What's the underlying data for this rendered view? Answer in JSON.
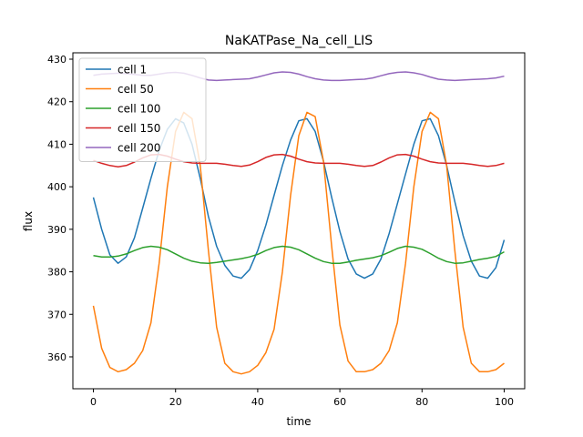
{
  "chart_data": {
    "type": "line",
    "title": "NaKATPase_Na_cell_LIS",
    "xlabel": "time",
    "ylabel": "flux",
    "xlim": [
      -5,
      105
    ],
    "ylim": [
      352.5,
      431.5
    ],
    "xticks": [
      0,
      20,
      40,
      60,
      80,
      100
    ],
    "yticks": [
      360,
      370,
      380,
      390,
      400,
      410,
      420,
      430
    ],
    "grid": false,
    "legend": "top-left",
    "series": [
      {
        "name": "cell 1",
        "color": "#1f77b4",
        "points": [
          [
            0,
            397.5
          ],
          [
            2,
            390
          ],
          [
            4,
            384
          ],
          [
            6,
            382
          ],
          [
            8,
            383.5
          ],
          [
            10,
            388
          ],
          [
            12,
            395
          ],
          [
            14,
            402
          ],
          [
            16,
            408.5
          ],
          [
            18,
            413.5
          ],
          [
            20,
            416
          ],
          [
            22,
            415
          ],
          [
            24,
            410
          ],
          [
            26,
            402
          ],
          [
            28,
            393
          ],
          [
            30,
            386
          ],
          [
            32,
            381.5
          ],
          [
            34,
            379
          ],
          [
            36,
            378.5
          ],
          [
            38,
            380.5
          ],
          [
            40,
            385
          ],
          [
            42,
            391
          ],
          [
            44,
            398
          ],
          [
            46,
            405
          ],
          [
            48,
            411
          ],
          [
            50,
            415.5
          ],
          [
            52,
            416
          ],
          [
            54,
            413
          ],
          [
            56,
            406
          ],
          [
            58,
            397.5
          ],
          [
            60,
            389.5
          ],
          [
            62,
            383
          ],
          [
            64,
            379.5
          ],
          [
            66,
            378.5
          ],
          [
            68,
            379.5
          ],
          [
            70,
            383
          ],
          [
            72,
            389
          ],
          [
            74,
            396
          ],
          [
            76,
            403
          ],
          [
            78,
            410
          ],
          [
            80,
            415.5
          ],
          [
            82,
            416
          ],
          [
            84,
            412
          ],
          [
            86,
            405
          ],
          [
            88,
            396.5
          ],
          [
            90,
            388.5
          ],
          [
            92,
            382.5
          ],
          [
            94,
            379
          ],
          [
            96,
            378.5
          ],
          [
            98,
            381
          ],
          [
            100,
            387.5
          ]
        ]
      },
      {
        "name": "cell 50",
        "color": "#ff7f0e",
        "points": [
          [
            0,
            372
          ],
          [
            2,
            362
          ],
          [
            4,
            357.5
          ],
          [
            6,
            356.5
          ],
          [
            8,
            357
          ],
          [
            10,
            358.5
          ],
          [
            12,
            361.5
          ],
          [
            14,
            368
          ],
          [
            16,
            382
          ],
          [
            18,
            400
          ],
          [
            20,
            413
          ],
          [
            22,
            417.5
          ],
          [
            24,
            416
          ],
          [
            26,
            405
          ],
          [
            28,
            385
          ],
          [
            30,
            367
          ],
          [
            32,
            358.5
          ],
          [
            34,
            356.5
          ],
          [
            36,
            356
          ],
          [
            38,
            356.5
          ],
          [
            40,
            358
          ],
          [
            42,
            361
          ],
          [
            44,
            366.5
          ],
          [
            46,
            380
          ],
          [
            48,
            398
          ],
          [
            50,
            412
          ],
          [
            52,
            417.5
          ],
          [
            54,
            416.5
          ],
          [
            56,
            406
          ],
          [
            58,
            386
          ],
          [
            60,
            367.5
          ],
          [
            62,
            359
          ],
          [
            64,
            356.5
          ],
          [
            66,
            356.5
          ],
          [
            68,
            357
          ],
          [
            70,
            358.5
          ],
          [
            72,
            361.5
          ],
          [
            74,
            368
          ],
          [
            76,
            382
          ],
          [
            78,
            400
          ],
          [
            80,
            413
          ],
          [
            82,
            417.5
          ],
          [
            84,
            416
          ],
          [
            86,
            405
          ],
          [
            88,
            385
          ],
          [
            90,
            367
          ],
          [
            92,
            358.5
          ],
          [
            94,
            356.5
          ],
          [
            96,
            356.5
          ],
          [
            98,
            357
          ],
          [
            100,
            358.5
          ]
        ]
      },
      {
        "name": "cell 100",
        "color": "#2ca02c",
        "points": [
          [
            0,
            383.8
          ],
          [
            2,
            383.5
          ],
          [
            4,
            383.5
          ],
          [
            6,
            383.7
          ],
          [
            8,
            384.2
          ],
          [
            10,
            385
          ],
          [
            12,
            385.7
          ],
          [
            14,
            386
          ],
          [
            16,
            385.8
          ],
          [
            18,
            385.2
          ],
          [
            20,
            384.2
          ],
          [
            22,
            383.2
          ],
          [
            24,
            382.5
          ],
          [
            26,
            382.1
          ],
          [
            28,
            382
          ],
          [
            30,
            382.2
          ],
          [
            32,
            382.5
          ],
          [
            34,
            382.8
          ],
          [
            36,
            383.1
          ],
          [
            38,
            383.5
          ],
          [
            40,
            384.1
          ],
          [
            42,
            385
          ],
          [
            44,
            385.7
          ],
          [
            46,
            386
          ],
          [
            48,
            385.8
          ],
          [
            50,
            385.2
          ],
          [
            52,
            384.2
          ],
          [
            54,
            383.2
          ],
          [
            56,
            382.4
          ],
          [
            58,
            382
          ],
          [
            60,
            382
          ],
          [
            62,
            382.3
          ],
          [
            64,
            382.7
          ],
          [
            66,
            383
          ],
          [
            68,
            383.3
          ],
          [
            70,
            383.8
          ],
          [
            72,
            384.6
          ],
          [
            74,
            385.5
          ],
          [
            76,
            386
          ],
          [
            78,
            385.8
          ],
          [
            80,
            385.3
          ],
          [
            82,
            384.3
          ],
          [
            84,
            383.2
          ],
          [
            86,
            382.4
          ],
          [
            88,
            382
          ],
          [
            90,
            382.1
          ],
          [
            92,
            382.5
          ],
          [
            94,
            382.9
          ],
          [
            96,
            383.2
          ],
          [
            98,
            383.6
          ],
          [
            100,
            384.7
          ]
        ]
      },
      {
        "name": "cell 150",
        "color": "#d62728",
        "points": [
          [
            0,
            406.2
          ],
          [
            2,
            405.5
          ],
          [
            4,
            405
          ],
          [
            6,
            404.7
          ],
          [
            8,
            405
          ],
          [
            10,
            405.8
          ],
          [
            12,
            406.8
          ],
          [
            14,
            407.5
          ],
          [
            16,
            407.6
          ],
          [
            18,
            407.2
          ],
          [
            20,
            406.5
          ],
          [
            22,
            405.9
          ],
          [
            24,
            405.6
          ],
          [
            26,
            405.5
          ],
          [
            28,
            405.5
          ],
          [
            30,
            405.5
          ],
          [
            32,
            405.3
          ],
          [
            34,
            405
          ],
          [
            36,
            404.8
          ],
          [
            38,
            405.1
          ],
          [
            40,
            405.9
          ],
          [
            42,
            406.9
          ],
          [
            44,
            407.5
          ],
          [
            46,
            407.6
          ],
          [
            48,
            407.2
          ],
          [
            50,
            406.5
          ],
          [
            52,
            405.9
          ],
          [
            54,
            405.6
          ],
          [
            56,
            405.5
          ],
          [
            58,
            405.5
          ],
          [
            60,
            405.5
          ],
          [
            62,
            405.3
          ],
          [
            64,
            405
          ],
          [
            66,
            404.8
          ],
          [
            68,
            405
          ],
          [
            70,
            405.8
          ],
          [
            72,
            406.8
          ],
          [
            74,
            407.5
          ],
          [
            76,
            407.6
          ],
          [
            78,
            407.2
          ],
          [
            80,
            406.5
          ],
          [
            82,
            405.9
          ],
          [
            84,
            405.6
          ],
          [
            86,
            405.5
          ],
          [
            88,
            405.5
          ],
          [
            90,
            405.5
          ],
          [
            92,
            405.3
          ],
          [
            94,
            405
          ],
          [
            96,
            404.8
          ],
          [
            98,
            405
          ],
          [
            100,
            405.5
          ]
        ]
      },
      {
        "name": "cell 200",
        "color": "#9467bd",
        "points": [
          [
            0,
            426.2
          ],
          [
            2,
            426.5
          ],
          [
            4,
            426.6
          ],
          [
            6,
            426.7
          ],
          [
            8,
            426.6
          ],
          [
            10,
            426.4
          ],
          [
            12,
            426.2
          ],
          [
            14,
            426.2
          ],
          [
            16,
            426.5
          ],
          [
            18,
            426.8
          ],
          [
            20,
            426.9
          ],
          [
            22,
            426.7
          ],
          [
            24,
            426.2
          ],
          [
            26,
            425.6
          ],
          [
            28,
            425.1
          ],
          [
            30,
            425
          ],
          [
            32,
            425.1
          ],
          [
            34,
            425.2
          ],
          [
            36,
            425.3
          ],
          [
            38,
            425.4
          ],
          [
            40,
            425.8
          ],
          [
            42,
            426.3
          ],
          [
            44,
            426.8
          ],
          [
            46,
            427
          ],
          [
            48,
            426.9
          ],
          [
            50,
            426.5
          ],
          [
            52,
            425.9
          ],
          [
            54,
            425.4
          ],
          [
            56,
            425.1
          ],
          [
            58,
            425
          ],
          [
            60,
            425
          ],
          [
            62,
            425.1
          ],
          [
            64,
            425.2
          ],
          [
            66,
            425.3
          ],
          [
            68,
            425.6
          ],
          [
            70,
            426.1
          ],
          [
            72,
            426.6
          ],
          [
            74,
            426.9
          ],
          [
            76,
            427
          ],
          [
            78,
            426.8
          ],
          [
            80,
            426.4
          ],
          [
            82,
            425.8
          ],
          [
            84,
            425.3
          ],
          [
            86,
            425.1
          ],
          [
            88,
            425
          ],
          [
            90,
            425.1
          ],
          [
            92,
            425.2
          ],
          [
            94,
            425.3
          ],
          [
            96,
            425.4
          ],
          [
            98,
            425.6
          ],
          [
            100,
            426
          ]
        ]
      }
    ]
  }
}
